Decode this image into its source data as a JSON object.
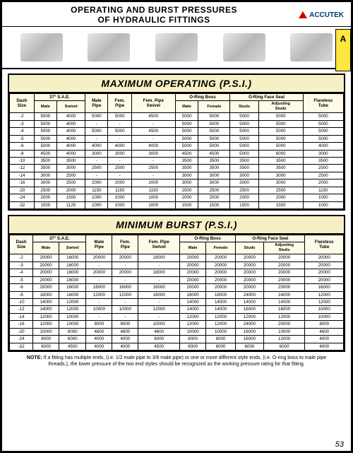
{
  "title_line1": "OPERATING AND BURST PRESSURES",
  "title_line2": "OF HYDRAULIC FITTINGS",
  "brand": "ACCUTEK",
  "tab": "A",
  "section1_title": "MAXIMUM OPERATING (P.S.I.)",
  "section2_title": "MINIMUM BURST (P.S.I.)",
  "cols": {
    "dash": "Dash\nSize",
    "sae": "37° S.A.E.",
    "male": "Male",
    "swivel": "Swivel",
    "mpipe": "Male\nPipe",
    "fpipe": "Fem.\nPipe",
    "fswivel": "Fem. Pipe\nSwivel",
    "oring": "O-Ring Boss",
    "female": "Female",
    "oface": "O-Ring Face Seal",
    "studs": "Studs",
    "adjstuds": "Adjusting\nStuds",
    "flareless": "Flareless\nTube"
  },
  "op_rows": [
    {
      "d": "-2",
      "sm": "5000",
      "ss": "4000",
      "mp": "5000",
      "fp": "5000",
      "fs": "4500",
      "om": "5000",
      "of": "5000",
      "st": "5000",
      "as": "5000",
      "fl": "5000"
    },
    {
      "d": "-3",
      "sm": "5000",
      "ss": "4000",
      "mp": "-",
      "fp": "-",
      "fs": "-",
      "om": "5000",
      "of": "5000",
      "st": "5000",
      "as": "5000",
      "fl": "5000"
    },
    {
      "d": "-4",
      "sm": "5000",
      "ss": "4000",
      "mp": "5000",
      "fp": "5000",
      "fs": "4500",
      "om": "5000",
      "of": "5000",
      "st": "5000",
      "as": "5000",
      "fl": "5000"
    },
    {
      "d": "-5",
      "sm": "5000",
      "ss": "4000",
      "mp": "-",
      "fp": "-",
      "fs": "-",
      "om": "5000",
      "of": "5000",
      "st": "5000",
      "as": "5000",
      "fl": "5000"
    },
    {
      "d": "-6",
      "sm": "5000",
      "ss": "4000",
      "mp": "4000",
      "fp": "4000",
      "fs": "4000",
      "om": "5000",
      "of": "5000",
      "st": "5000",
      "as": "5000",
      "fl": "4000"
    },
    {
      "d": "-8",
      "sm": "4500",
      "ss": "4000",
      "mp": "3000",
      "fp": "3000",
      "fs": "3000",
      "om": "4500",
      "of": "4500",
      "st": "5000",
      "as": "6000",
      "fl": "3000"
    },
    {
      "d": "-10",
      "sm": "3500",
      "ss": "3500",
      "mp": "-",
      "fp": "-",
      "fs": "-",
      "om": "3500",
      "of": "3500",
      "st": "3500",
      "as": "3500",
      "fl": "3500"
    },
    {
      "d": "-12",
      "sm": "3500",
      "ss": "3000",
      "mp": "2500",
      "fp": "2500",
      "fs": "2500",
      "om": "3500",
      "of": "3500",
      "st": "3500",
      "as": "3500",
      "fl": "2500"
    },
    {
      "d": "-14",
      "sm": "3000",
      "ss": "2500",
      "mp": "-",
      "fp": "-",
      "fs": "-",
      "om": "3000",
      "of": "3000",
      "st": "3000",
      "as": "3000",
      "fl": "2500"
    },
    {
      "d": "-16",
      "sm": "3000",
      "ss": "2500",
      "mp": "2000",
      "fp": "2000",
      "fs": "2000",
      "om": "3000",
      "of": "3000",
      "st": "3000",
      "as": "3000",
      "fl": "2000"
    },
    {
      "d": "-20",
      "sm": "2500",
      "ss": "2000",
      "mp": "1150",
      "fp": "1150",
      "fs": "1150",
      "om": "2500",
      "of": "2500",
      "st": "2500",
      "as": "2500",
      "fl": "1150"
    },
    {
      "d": "-24",
      "sm": "2000",
      "ss": "1500",
      "mp": "1000",
      "fp": "1000",
      "fs": "1000",
      "om": "2000",
      "of": "2000",
      "st": "2000",
      "as": "2000",
      "fl": "1000"
    },
    {
      "d": "-32",
      "sm": "1500",
      "ss": "1125",
      "mp": "1000",
      "fp": "1000",
      "fs": "1000",
      "om": "1500",
      "of": "1500",
      "st": "1500",
      "as": "1500",
      "fl": "1000"
    }
  ],
  "burst_rows": [
    {
      "d": "-2",
      "sm": "20000",
      "ss": "16000",
      "mp": "20000",
      "fp": "20000",
      "fs": "18000",
      "om": "20000",
      "of": "20000",
      "st": "20000",
      "as": "20000",
      "fl": "20000"
    },
    {
      "d": "-3",
      "sm": "20000",
      "ss": "16000",
      "mp": "-",
      "fp": "-",
      "fs": "-",
      "om": "20000",
      "of": "20000",
      "st": "20000",
      "as": "20000",
      "fl": "20000"
    },
    {
      "d": "-4",
      "sm": "20000",
      "ss": "16000",
      "mp": "20000",
      "fp": "20000",
      "fs": "18000",
      "om": "20000",
      "of": "20000",
      "st": "20000",
      "as": "20000",
      "fl": "20000"
    },
    {
      "d": "-5",
      "sm": "20000",
      "ss": "16000",
      "mp": "-",
      "fp": "-",
      "fs": "-",
      "om": "20000",
      "of": "20000",
      "st": "20000",
      "as": "20000",
      "fl": "20000"
    },
    {
      "d": "-6",
      "sm": "20000",
      "ss": "16000",
      "mp": "16000",
      "fp": "16000",
      "fs": "16000",
      "om": "20000",
      "of": "20000",
      "st": "20000",
      "as": "20000",
      "fl": "16000"
    },
    {
      "d": "-8",
      "sm": "18000",
      "ss": "16000",
      "mp": "12000",
      "fp": "12000",
      "fs": "16000",
      "om": "18000",
      "of": "18000",
      "st": "24000",
      "as": "24000",
      "fl": "12000"
    },
    {
      "d": "-10",
      "sm": "14000",
      "ss": "12000",
      "mp": "-",
      "fp": "-",
      "fs": "-",
      "om": "14000",
      "of": "14000",
      "st": "14000",
      "as": "14000",
      "fl": "12000"
    },
    {
      "d": "-12",
      "sm": "14000",
      "ss": "12000",
      "mp": "10000",
      "fp": "10000",
      "fs": "12000",
      "om": "14000",
      "of": "14000",
      "st": "16000",
      "as": "16000",
      "fl": "10000"
    },
    {
      "d": "-14",
      "sm": "12000",
      "ss": "10000",
      "mp": "-",
      "fp": "-",
      "fs": "-",
      "om": "12000",
      "of": "12000",
      "st": "12000",
      "as": "12000",
      "fl": "10000"
    },
    {
      "d": "-16",
      "sm": "12000",
      "ss": "10000",
      "mp": "8000",
      "fp": "8000",
      "fs": "10000",
      "om": "12000",
      "of": "12000",
      "st": "24000",
      "as": "20000",
      "fl": "8000"
    },
    {
      "d": "-20",
      "sm": "10000",
      "ss": "8000",
      "mp": "4600",
      "fp": "4600",
      "fs": "4600",
      "om": "10000",
      "of": "10000",
      "st": "16000",
      "as": "10000",
      "fl": "4600"
    },
    {
      "d": "-24",
      "sm": "8000",
      "ss": "6000",
      "mp": "4000",
      "fp": "4000",
      "fs": "6000",
      "om": "8000",
      "of": "8000",
      "st": "16000",
      "as": "12000",
      "fl": "4000"
    },
    {
      "d": "-32",
      "sm": "6000",
      "ss": "4500",
      "mp": "4000",
      "fp": "4000",
      "fs": "4500",
      "om": "6000",
      "of": "6000",
      "st": "6000",
      "as": "6000",
      "fl": "4000"
    }
  ],
  "note_label": "NOTE:",
  "note_text": "If a fitting has multiple ends, (i.e. 1/2 male pipe to 3/8 male pipe) or one or more different style ends, (i.e. O-ring boss to male pipe threads.), the lower pressure of the two end styles should be recognized as the working pressure rating for that fitting.",
  "page_number": "53"
}
